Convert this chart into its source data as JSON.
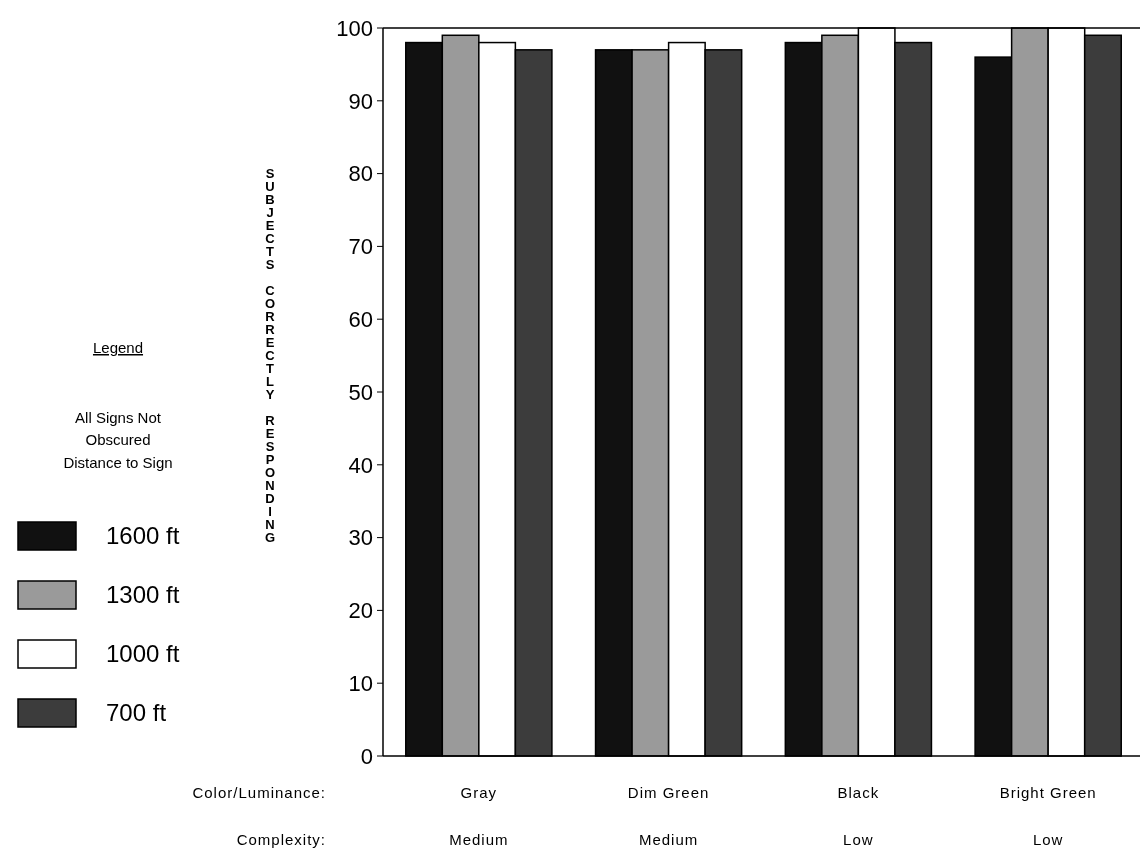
{
  "chart_data": {
    "type": "bar",
    "categories": [
      "Gray\nMedium",
      "Dim Green\nMedium",
      "Black\nLow",
      "Bright Green\nLow"
    ],
    "xlabel": "Color/Luminance:\nComplexity:",
    "ylabel": "SUBJECTS CORRECTLY RESPONDING",
    "legend_title": "Distance to Sign",
    "annotations": [
      "Legend",
      "All Signs Not\nObscured"
    ],
    "series": [
      {
        "name": "1600 ft",
        "color": "#111111",
        "values": [
          98,
          97,
          98,
          96
        ]
      },
      {
        "name": "1300 ft",
        "color": "#9a9a9a",
        "values": [
          99,
          97,
          99,
          100
        ]
      },
      {
        "name": "1000 ft",
        "color": "#ffffff",
        "values": [
          98,
          98,
          100,
          100
        ]
      },
      {
        "name": "700 ft",
        "color": "#3c3c3c",
        "values": [
          97,
          97,
          98,
          99
        ]
      }
    ],
    "ylim": [
      0,
      100
    ],
    "yticks": [
      0,
      10,
      20,
      30,
      40,
      50,
      60,
      70,
      80,
      90,
      100
    ],
    "legend": "left",
    "grid": false
  }
}
